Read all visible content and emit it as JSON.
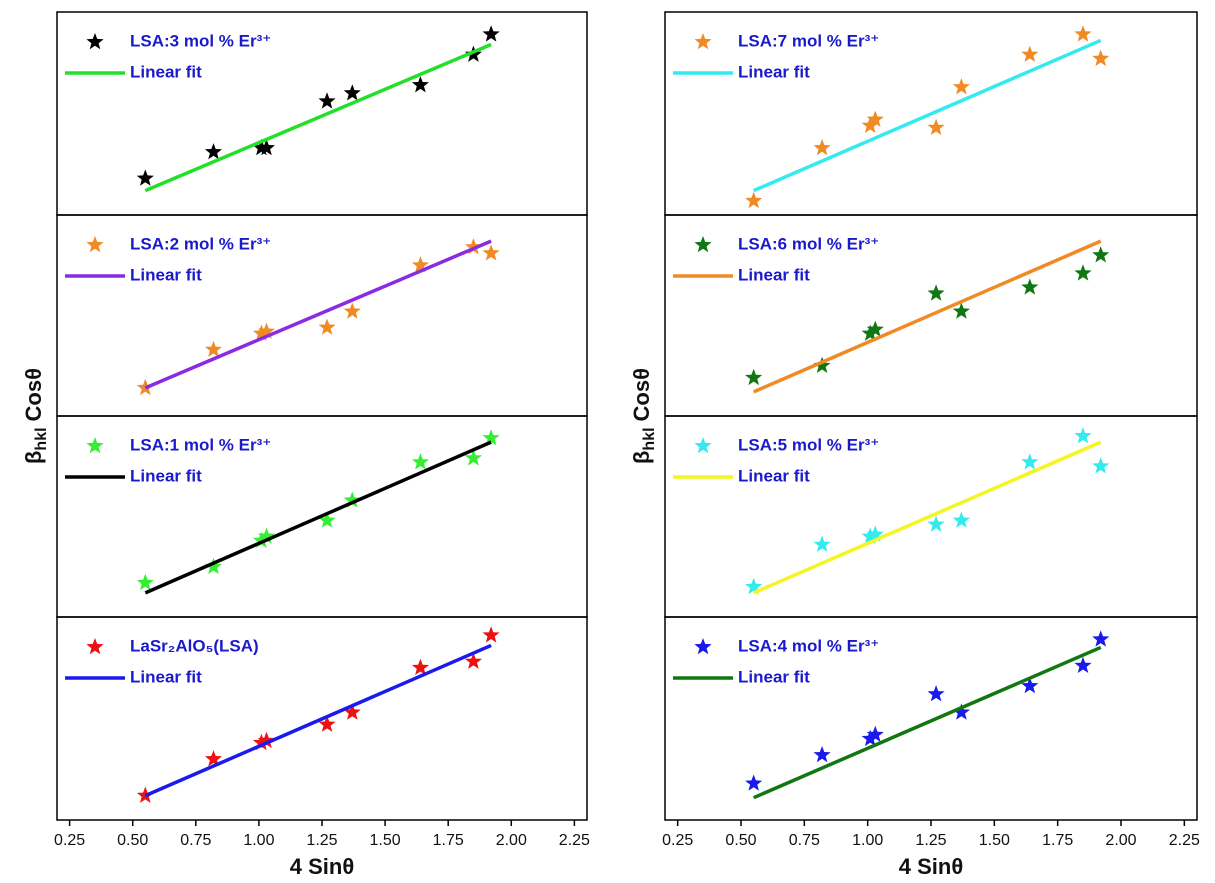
{
  "chart_data": [
    {
      "type": "scatter",
      "x": [
        0.55,
        0.82,
        1.01,
        1.03,
        1.27,
        1.37,
        1.64,
        1.85,
        1.92
      ],
      "xlim": [
        0.2,
        2.3
      ],
      "ylim": [
        0,
        1
      ],
      "series": [
        {
          "name": "LSA:3 mol % Er³⁺",
          "color": "#000000",
          "values": [
            0.18,
            0.31,
            0.33,
            0.33,
            0.56,
            0.6,
            0.64,
            0.79,
            0.89
          ]
        },
        {
          "name": "Linear fit",
          "type": "line",
          "color": "#22e02a",
          "x": [
            0.55,
            1.92
          ],
          "values": [
            0.12,
            0.84
          ]
        }
      ]
    },
    {
      "type": "scatter",
      "x": [
        0.55,
        0.82,
        1.01,
        1.03,
        1.27,
        1.37,
        1.64,
        1.85,
        1.92
      ],
      "xlim": [
        0.2,
        2.3
      ],
      "ylim": [
        0,
        1
      ],
      "series": [
        {
          "name": "LSA:2 mol % Er³⁺",
          "color": "#f08a24",
          "values": [
            0.14,
            0.33,
            0.41,
            0.42,
            0.44,
            0.52,
            0.75,
            0.84,
            0.81
          ]
        },
        {
          "name": "Linear fit",
          "type": "line",
          "color": "#8a2be2",
          "x": [
            0.55,
            1.92
          ],
          "values": [
            0.14,
            0.87
          ]
        }
      ]
    },
    {
      "type": "scatter",
      "x": [
        0.55,
        0.82,
        1.01,
        1.03,
        1.27,
        1.37,
        1.64,
        1.85,
        1.92
      ],
      "xlim": [
        0.2,
        2.3
      ],
      "ylim": [
        0,
        1
      ],
      "series": [
        {
          "name": "LSA:1 mol % Er³⁺",
          "color": "#33ee33",
          "values": [
            0.17,
            0.25,
            0.38,
            0.4,
            0.48,
            0.58,
            0.77,
            0.79,
            0.89
          ]
        },
        {
          "name": "Linear fit",
          "type": "line",
          "color": "#000000",
          "x": [
            0.55,
            1.92
          ],
          "values": [
            0.12,
            0.87
          ]
        }
      ]
    },
    {
      "type": "scatter",
      "x": [
        0.55,
        0.82,
        1.01,
        1.03,
        1.27,
        1.37,
        1.64,
        1.85,
        1.92
      ],
      "xlim": [
        0.2,
        2.3
      ],
      "ylim": [
        0,
        1
      ],
      "xticks": [
        0.25,
        {
          "value": 0.5,
          "label": "0.50"
        },
        0.75,
        {
          "value": 1,
          "label": "1.00"
        },
        1.25,
        {
          "value": 1.5,
          "label": "1.50"
        },
        1.75,
        {
          "value": 2,
          "label": "2.00"
        },
        2.25
      ],
      "xlabel": "4 Sinθ",
      "ylabel": {
        "symbol": "β",
        "subscript": "hkl",
        "text": "Cosθ"
      },
      "series": [
        {
          "name": "LaSr₂AlO₅(LSA)",
          "color": "#ee1111",
          "values": [
            0.12,
            0.3,
            0.38,
            0.39,
            0.47,
            0.53,
            0.75,
            0.78,
            0.91
          ]
        },
        {
          "name": "Linear fit",
          "type": "line",
          "color": "#1a1aee",
          "x": [
            0.55,
            1.92
          ],
          "values": [
            0.12,
            0.86
          ]
        }
      ]
    },
    {
      "type": "scatter",
      "x": [
        0.55,
        0.82,
        1.01,
        1.03,
        1.27,
        1.37,
        1.64,
        1.85,
        1.92
      ],
      "xlim": [
        0.2,
        2.3
      ],
      "ylim": [
        0,
        1
      ],
      "series": [
        {
          "name": "LSA:7 mol % Er³⁺",
          "color": "#f08a24",
          "values": [
            0.07,
            0.33,
            0.44,
            0.47,
            0.43,
            0.63,
            0.79,
            0.89,
            0.77
          ]
        },
        {
          "name": "Linear fit",
          "type": "line",
          "color": "#33eaee",
          "x": [
            0.55,
            1.92
          ],
          "values": [
            0.12,
            0.86
          ]
        }
      ]
    },
    {
      "type": "scatter",
      "x": [
        0.55,
        0.82,
        1.01,
        1.03,
        1.27,
        1.37,
        1.64,
        1.85,
        1.92
      ],
      "xlim": [
        0.2,
        2.3
      ],
      "ylim": [
        0,
        1
      ],
      "series": [
        {
          "name": "LSA:6 mol % Er³⁺",
          "color": "#117711",
          "values": [
            0.19,
            0.25,
            0.41,
            0.43,
            0.61,
            0.52,
            0.64,
            0.71,
            0.8
          ]
        },
        {
          "name": "Linear fit",
          "type": "line",
          "color": "#f08a24",
          "x": [
            0.55,
            1.92
          ],
          "values": [
            0.12,
            0.87
          ]
        }
      ]
    },
    {
      "type": "scatter",
      "x": [
        0.55,
        0.82,
        1.01,
        1.03,
        1.27,
        1.37,
        1.64,
        1.85,
        1.92
      ],
      "xlim": [
        0.2,
        2.3
      ],
      "ylim": [
        0,
        1
      ],
      "series": [
        {
          "name": "LSA:5 mol % Er³⁺",
          "color": "#33eaee",
          "values": [
            0.15,
            0.36,
            0.4,
            0.41,
            0.46,
            0.48,
            0.77,
            0.9,
            0.75
          ]
        },
        {
          "name": "Linear fit",
          "type": "line",
          "color": "#f5f522",
          "x": [
            0.55,
            1.92
          ],
          "values": [
            0.12,
            0.87
          ]
        }
      ]
    },
    {
      "type": "scatter",
      "x": [
        0.55,
        0.82,
        1.01,
        1.03,
        1.27,
        1.37,
        1.64,
        1.85,
        1.92
      ],
      "xlim": [
        0.2,
        2.3
      ],
      "ylim": [
        0,
        1
      ],
      "xticks": [
        0.25,
        {
          "value": 0.5,
          "label": "0.50"
        },
        0.75,
        {
          "value": 1,
          "label": "1.00"
        },
        1.25,
        {
          "value": 1.5,
          "label": "1.50"
        },
        1.75,
        {
          "value": 2,
          "label": "2.00"
        },
        2.25
      ],
      "xlabel": "4 Sinθ",
      "ylabel": {
        "symbol": "β",
        "subscript": "hkl",
        "text": "Cosθ"
      },
      "series": [
        {
          "name": "LSA:4 mol % Er³⁺",
          "color": "#1a1aee",
          "values": [
            0.18,
            0.32,
            0.4,
            0.42,
            0.62,
            0.53,
            0.66,
            0.76,
            0.89
          ]
        },
        {
          "name": "Linear fit",
          "type": "line",
          "color": "#117711",
          "x": [
            0.55,
            1.92
          ],
          "values": [
            0.11,
            0.85
          ]
        }
      ]
    }
  ]
}
